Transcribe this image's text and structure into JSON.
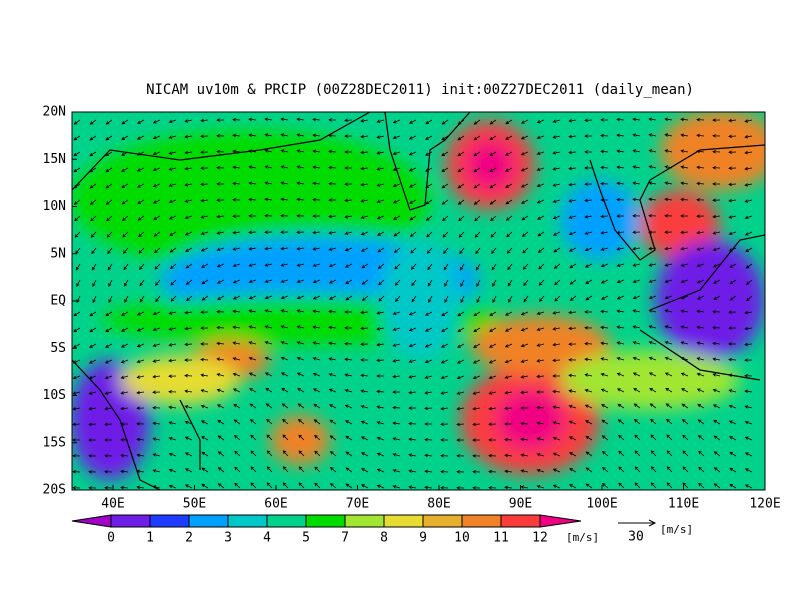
{
  "header": {
    "title": "NICAM uv10m & PRCIP (00Z28DEC2011) init:00Z27DEC2011 (daily_mean)"
  },
  "map": {
    "lon_labels": [
      "40E",
      "50E",
      "60E",
      "70E",
      "80E",
      "90E",
      "100E",
      "110E",
      "120E"
    ],
    "lat_labels": [
      "20N",
      "15N",
      "10N",
      "5N",
      "EQ",
      "5S",
      "10S",
      "15S",
      "20S"
    ]
  },
  "colorbar": {
    "labels": [
      "0",
      "1",
      "2",
      "3",
      "4",
      "5",
      "7",
      "8",
      "9",
      "10",
      "11",
      "12"
    ],
    "colors": [
      "#a000c8",
      "#6e1ee6",
      "#1e3cff",
      "#00a0ff",
      "#00c8c8",
      "#00d28c",
      "#00dc00",
      "#a0e632",
      "#e6dc32",
      "#e6af2d",
      "#f08228",
      "#fa3c3c",
      "#f00082"
    ],
    "unit": "[m/s]"
  },
  "reference_vector": {
    "magnitude": "30",
    "unit": "[m/s]"
  }
}
